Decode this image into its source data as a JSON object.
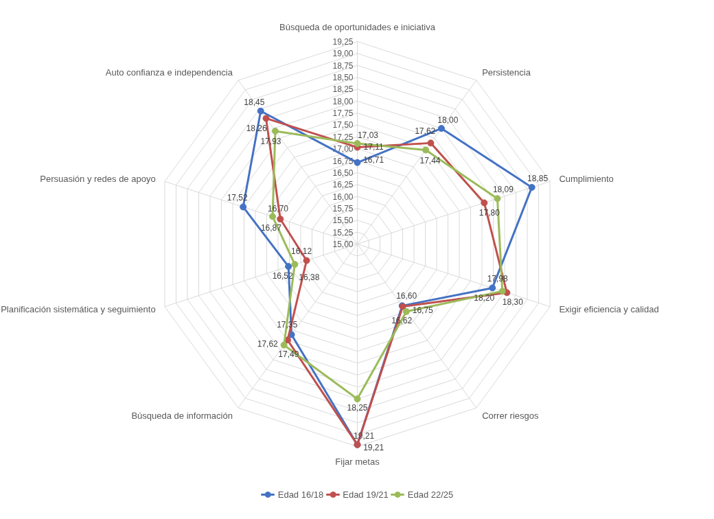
{
  "chart_data": {
    "type": "radar",
    "categories": [
      "Búsqueda de oportunidades e iniciativa",
      "Persistencia",
      "Cumplimiento",
      "Exigir eficiencia y calidad",
      "Correr riesgos",
      "Fijar metas",
      "Búsqueda de información",
      "Planificación sistemática y seguimiento",
      "Persuasión y redes de apoyo",
      "Auto confianza e independencia"
    ],
    "series": [
      {
        "name": "Edad 16/18",
        "color": "#4472c4",
        "values": [
          16.71,
          18.0,
          18.85,
          17.98,
          16.6,
          19.21,
          17.35,
          16.52,
          17.52,
          18.45
        ],
        "value_labels": [
          "16,71",
          "18,00",
          "18,85",
          "17,98",
          "16,60",
          "19,21",
          "17,35",
          "16,52",
          "17,52",
          "18,45"
        ]
      },
      {
        "name": "Edad 19/21",
        "color": "#c0504d",
        "values": [
          17.03,
          17.62,
          17.8,
          18.3,
          16.62,
          19.21,
          17.49,
          16.12,
          16.7,
          18.26
        ],
        "value_labels": [
          "17,03",
          "17,62",
          "17,80",
          "18,30",
          "16,62",
          "19,21",
          "17,49",
          "16,12",
          "16,70",
          "18,26"
        ]
      },
      {
        "name": "Edad 22/25",
        "color": "#9bbb59",
        "values": [
          17.11,
          17.44,
          18.09,
          18.2,
          16.75,
          18.25,
          17.62,
          16.38,
          16.87,
          17.93
        ],
        "value_labels": [
          "17,11",
          "17,44",
          "18,09",
          "18,20",
          "16,75",
          "18,25",
          "17,62",
          "16,38",
          "16,87",
          "17,93"
        ]
      }
    ],
    "ylim": [
      15.0,
      19.25
    ],
    "yticks": [
      {
        "value": 15.0,
        "label": "15,00"
      },
      {
        "value": 15.25,
        "label": "15,25"
      },
      {
        "value": 15.5,
        "label": "15,50"
      },
      {
        "value": 15.75,
        "label": "15,75"
      },
      {
        "value": 16.0,
        "label": "16,00"
      },
      {
        "value": 16.25,
        "label": "16,25"
      },
      {
        "value": 16.5,
        "label": "16,50"
      },
      {
        "value": 16.75,
        "label": "16,75"
      },
      {
        "value": 17.0,
        "label": "17,00"
      },
      {
        "value": 17.25,
        "label": "17,25"
      },
      {
        "value": 17.5,
        "label": "17,50"
      },
      {
        "value": 17.75,
        "label": "17,75"
      },
      {
        "value": 18.0,
        "label": "18,00"
      },
      {
        "value": 18.25,
        "label": "18,25"
      },
      {
        "value": 18.5,
        "label": "18,50"
      },
      {
        "value": 18.75,
        "label": "18,75"
      },
      {
        "value": 19.0,
        "label": "19,00"
      },
      {
        "value": 19.25,
        "label": "19,25"
      }
    ],
    "grid": true,
    "legend": "bottom",
    "marker": "circle",
    "line_style": "solid"
  }
}
